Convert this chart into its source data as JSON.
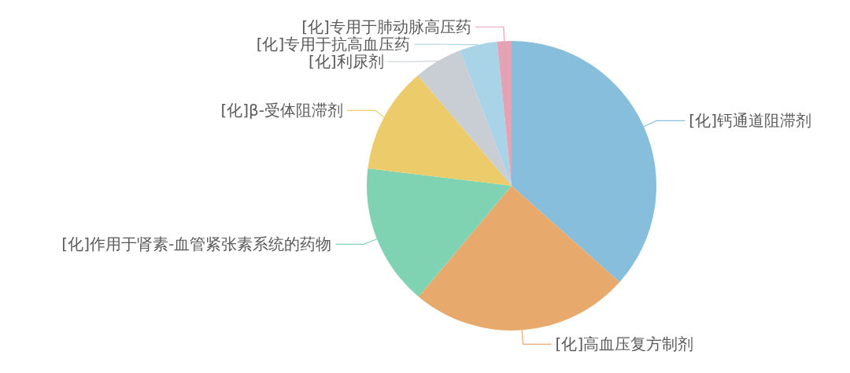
{
  "chart_data": {
    "type": "pie",
    "categories": [
      "[化]钙通道阻滞剂",
      "[化]高血压复方制剂",
      "[化]作用于肾素-血管紧张素系统的药物",
      "[化]β-受体阻滞剂",
      "[化]利尿剂",
      "[化]专用于抗高血压药",
      "[化]专用于肺动脉高压药"
    ],
    "values": [
      36.6,
      24.5,
      15.8,
      11.9,
      5.4,
      4.2,
      1.6
    ],
    "colors": [
      "#86bedb",
      "#e8aa6c",
      "#80d3b2",
      "#eccb6a",
      "#c9ced5",
      "#a9d3e6",
      "#e3a3b5"
    ]
  }
}
